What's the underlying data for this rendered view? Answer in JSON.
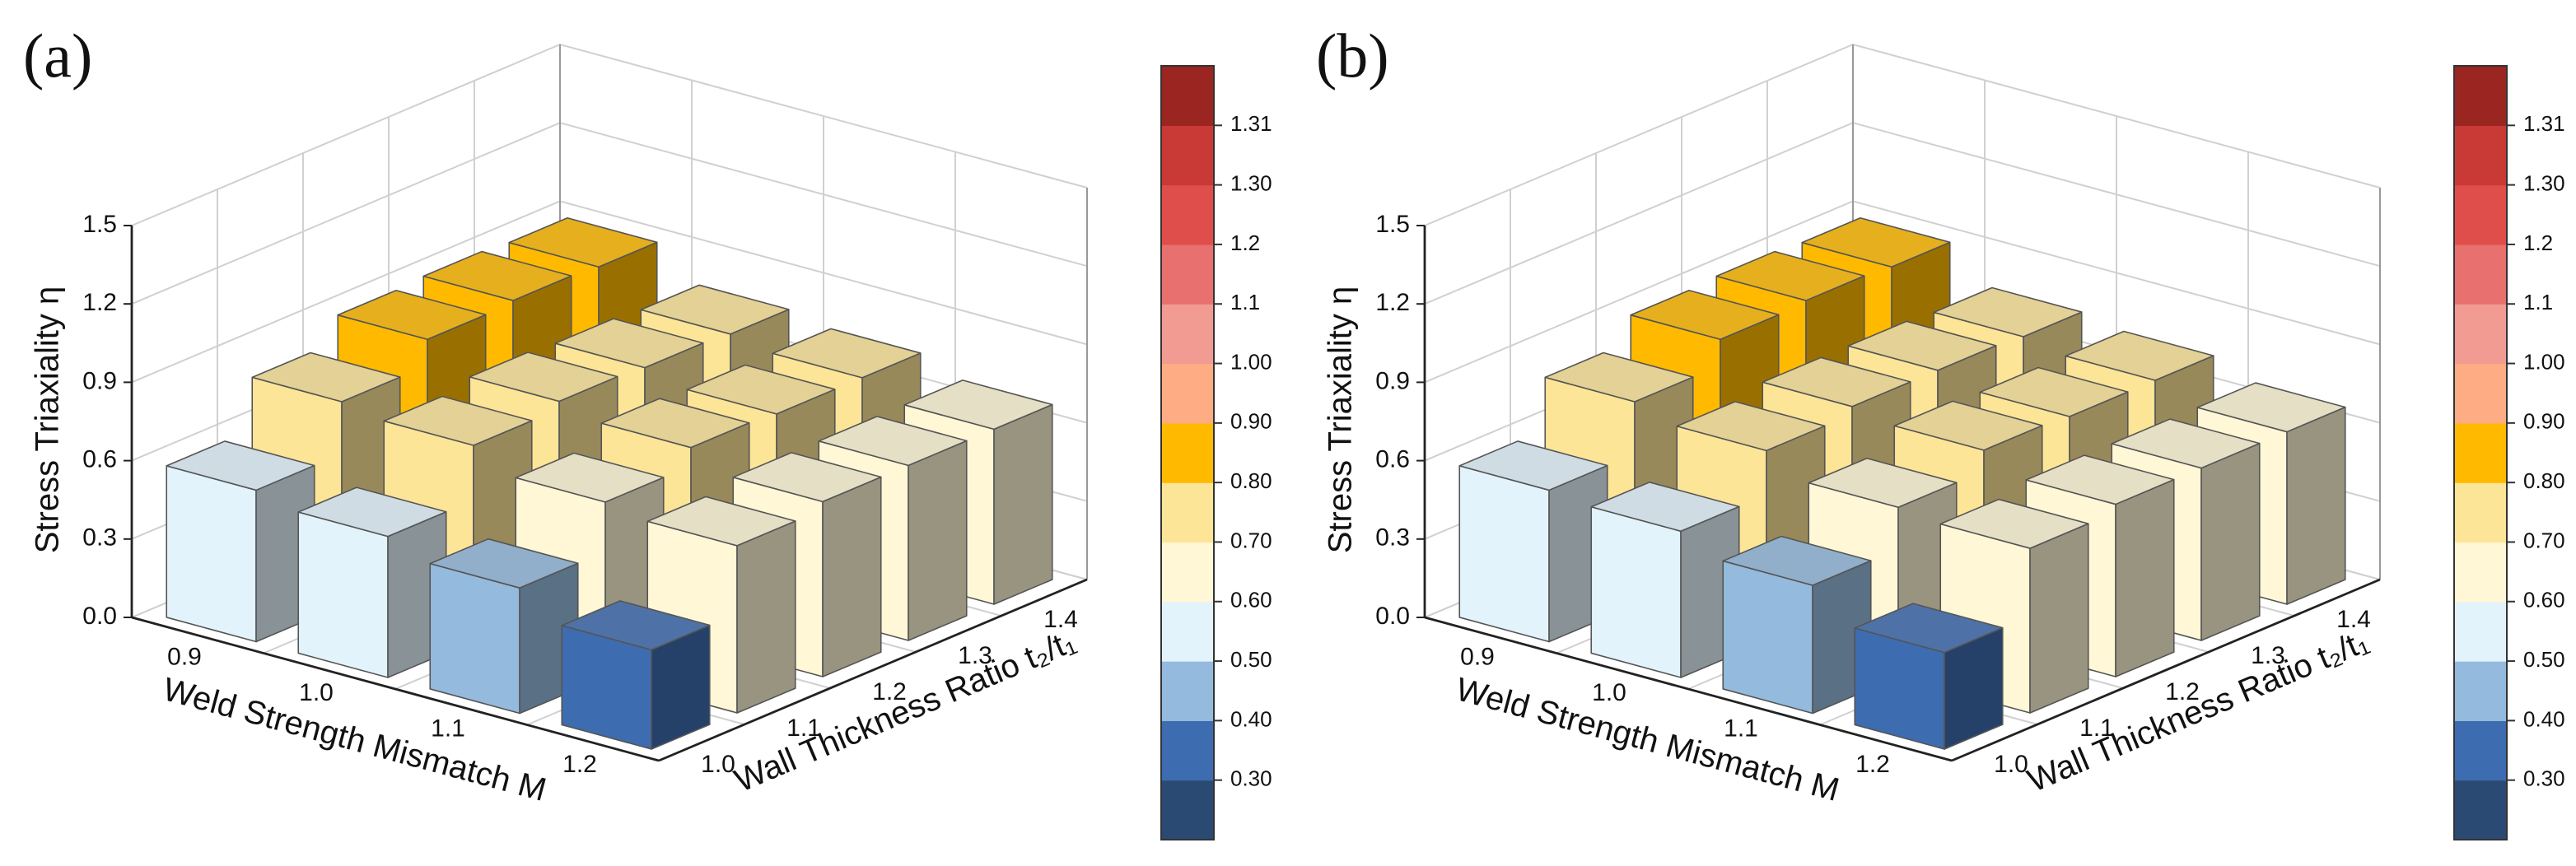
{
  "chart_data": [
    {
      "type": "bar3d",
      "label": "(a)",
      "zlabel": "Stress Triaxiality η",
      "xlabel": "Weld Strength Mismatch M",
      "ylabel": "Wall Thickness Ratio t₂/t₁",
      "x": [
        "0.9",
        "1.0",
        "1.1",
        "1.2"
      ],
      "y": [
        "1.0",
        "1.1",
        "1.2",
        "1.3",
        "1.4"
      ],
      "values": [
        [
          0.58,
          0.54,
          0.48,
          0.38
        ],
        [
          0.78,
          0.75,
          0.67,
          0.64
        ],
        [
          0.88,
          0.78,
          0.74,
          0.67
        ],
        [
          0.89,
          0.77,
          0.73,
          0.67
        ],
        [
          0.88,
          0.76,
          0.73,
          0.67
        ]
      ],
      "zlim": [
        0,
        1.5
      ],
      "zticks": [
        {
          "value": 0,
          "label": "0.0"
        },
        0.3,
        0.6,
        0.9,
        1.2,
        1.5
      ],
      "grid": true,
      "colorbar": {
        "colors": [
          "#2b4a73",
          "#3d6cb0",
          "#94badd",
          "#e3f3fc",
          "#fff7d6",
          "#fde598",
          "#ffba00",
          "#fdac84",
          "#f29b93",
          "#e8706e",
          "#e04e4b",
          "#c93a36",
          "#9b2520"
        ],
        "ticks": [
          {
            "value": 0.3,
            "label": "0.30"
          },
          {
            "value": 0.4,
            "label": "0.40"
          },
          {
            "value": 0.5,
            "label": "0.50"
          },
          {
            "value": 0.6,
            "label": "0.60"
          },
          {
            "value": 0.7,
            "label": "0.70"
          },
          {
            "value": 0.8,
            "label": "0.80"
          },
          {
            "value": 0.9,
            "label": "0.90"
          },
          {
            "value": 1,
            "label": "1.00"
          },
          1.1,
          1.2,
          {
            "value": 1.3,
            "label": "1.30"
          },
          1.31
        ]
      }
    },
    {
      "type": "bar3d",
      "label": "(b)",
      "zlabel": "Stress Triaxiality η",
      "xlabel": "Weld Strength Mismatch M",
      "ylabel": "Wall Thickness Ratio t₂/t₁",
      "x": [
        "0.9",
        "1.0",
        "1.1",
        "1.2"
      ],
      "y": [
        "1.0",
        "1.1",
        "1.2",
        "1.3",
        "1.4"
      ],
      "values": [
        [
          0.58,
          0.56,
          0.49,
          0.37
        ],
        [
          0.78,
          0.73,
          0.65,
          0.63
        ],
        [
          0.88,
          0.76,
          0.73,
          0.66
        ],
        [
          0.89,
          0.76,
          0.72,
          0.66
        ],
        [
          0.88,
          0.75,
          0.72,
          0.66
        ]
      ],
      "zlim": [
        0,
        1.5
      ],
      "zticks": [
        {
          "value": 0,
          "label": "0.0"
        },
        0.3,
        0.6,
        0.9,
        1.2,
        1.5
      ],
      "grid": true,
      "colorbar": {
        "colors": [
          "#2b4a73",
          "#3d6cb0",
          "#94badd",
          "#e3f3fc",
          "#fff7d6",
          "#fde598",
          "#ffba00",
          "#fdac84",
          "#f29b93",
          "#e8706e",
          "#e04e4b",
          "#c93a36",
          "#9b2520"
        ],
        "ticks": [
          {
            "value": 0.3,
            "label": "0.30"
          },
          {
            "value": 0.4,
            "label": "0.40"
          },
          {
            "value": 0.5,
            "label": "0.50"
          },
          {
            "value": 0.6,
            "label": "0.60"
          },
          {
            "value": 0.7,
            "label": "0.70"
          },
          {
            "value": 0.8,
            "label": "0.80"
          },
          {
            "value": 0.9,
            "label": "0.90"
          },
          {
            "value": 1,
            "label": "1.00"
          },
          1.1,
          1.2,
          {
            "value": 1.3,
            "label": "1.30"
          },
          1.31
        ]
      }
    }
  ]
}
